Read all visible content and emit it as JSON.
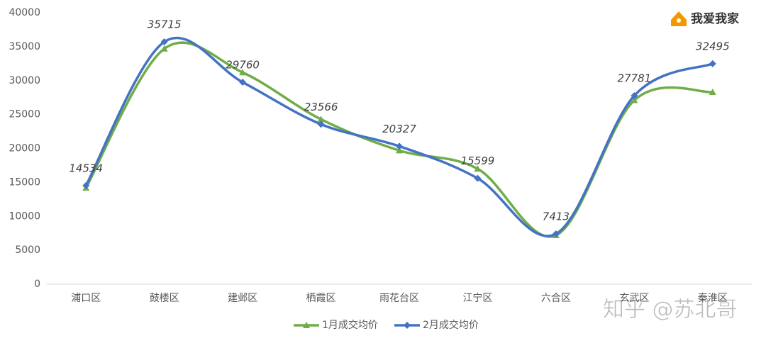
{
  "chart_data": {
    "type": "line",
    "categories": [
      "浦口区",
      "鼓楼区",
      "建邺区",
      "栖霞区",
      "雨花台区",
      "江宁区",
      "六合区",
      "玄武区",
      "秦淮区"
    ],
    "series": [
      {
        "name": "1月成交均价",
        "color": "#70ad47",
        "marker": "triangle",
        "data_labels": false,
        "values": [
          14200,
          34700,
          31200,
          24300,
          19700,
          17000,
          7200,
          27100,
          28300
        ]
      },
      {
        "name": "2月成交均价",
        "color": "#4472c4",
        "marker": "diamond",
        "data_labels": true,
        "values": [
          14534,
          35715,
          29760,
          23566,
          20327,
          15599,
          7413,
          27781,
          32495
        ]
      }
    ],
    "ylim": [
      0,
      40000
    ],
    "yticks": [
      0,
      5000,
      10000,
      15000,
      20000,
      25000,
      30000,
      35000,
      40000
    ],
    "grid": false,
    "smooth": true,
    "legend": "bottom",
    "logo_text": "我爱我家",
    "watermark": "知乎 @苏北哥"
  }
}
